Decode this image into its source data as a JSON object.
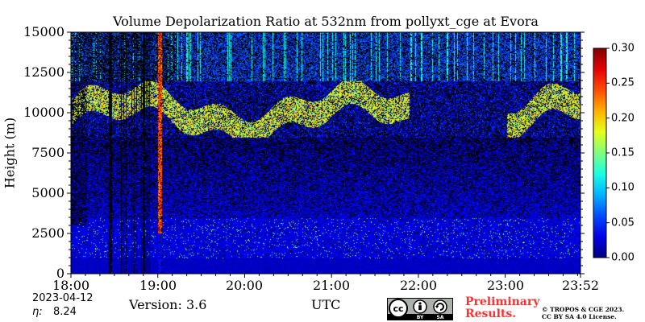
{
  "chart_data": {
    "type": "heatmap",
    "title": "Volume Depolarization Ratio at 532nm from pollyxt_cge at Evora",
    "ylabel": "Height (m)",
    "xlabel": "UTC",
    "x_ticks": [
      "18:00",
      "19:00",
      "20:00",
      "21:00",
      "22:00",
      "23:00",
      "23:52"
    ],
    "y_ticks": [
      "0",
      "2500",
      "5000",
      "7500",
      "10000",
      "12500",
      "15000"
    ],
    "ylim": [
      0,
      15000
    ],
    "xlim": [
      "18:00",
      "23:52"
    ],
    "colorbar": {
      "min": 0.0,
      "max": 0.3,
      "ticks": [
        "0.00",
        "0.05",
        "0.10",
        "0.15",
        "0.20",
        "0.25",
        "0.30"
      ],
      "colormap": "jet"
    }
  },
  "footer": {
    "date": "2023-04-12",
    "eta_label": "η:",
    "eta_value": "8.24",
    "version": "Version: 3.6",
    "preliminary_line1": "Preliminary",
    "preliminary_line2": "Results.",
    "copyright_line1": "© TROPOS & CGE 2023.",
    "copyright_line2": "CC BY SA 4.0 License.",
    "license_badge": [
      "cc",
      "BY",
      "SA"
    ]
  },
  "colors": {
    "preliminary": "#ff3030"
  }
}
